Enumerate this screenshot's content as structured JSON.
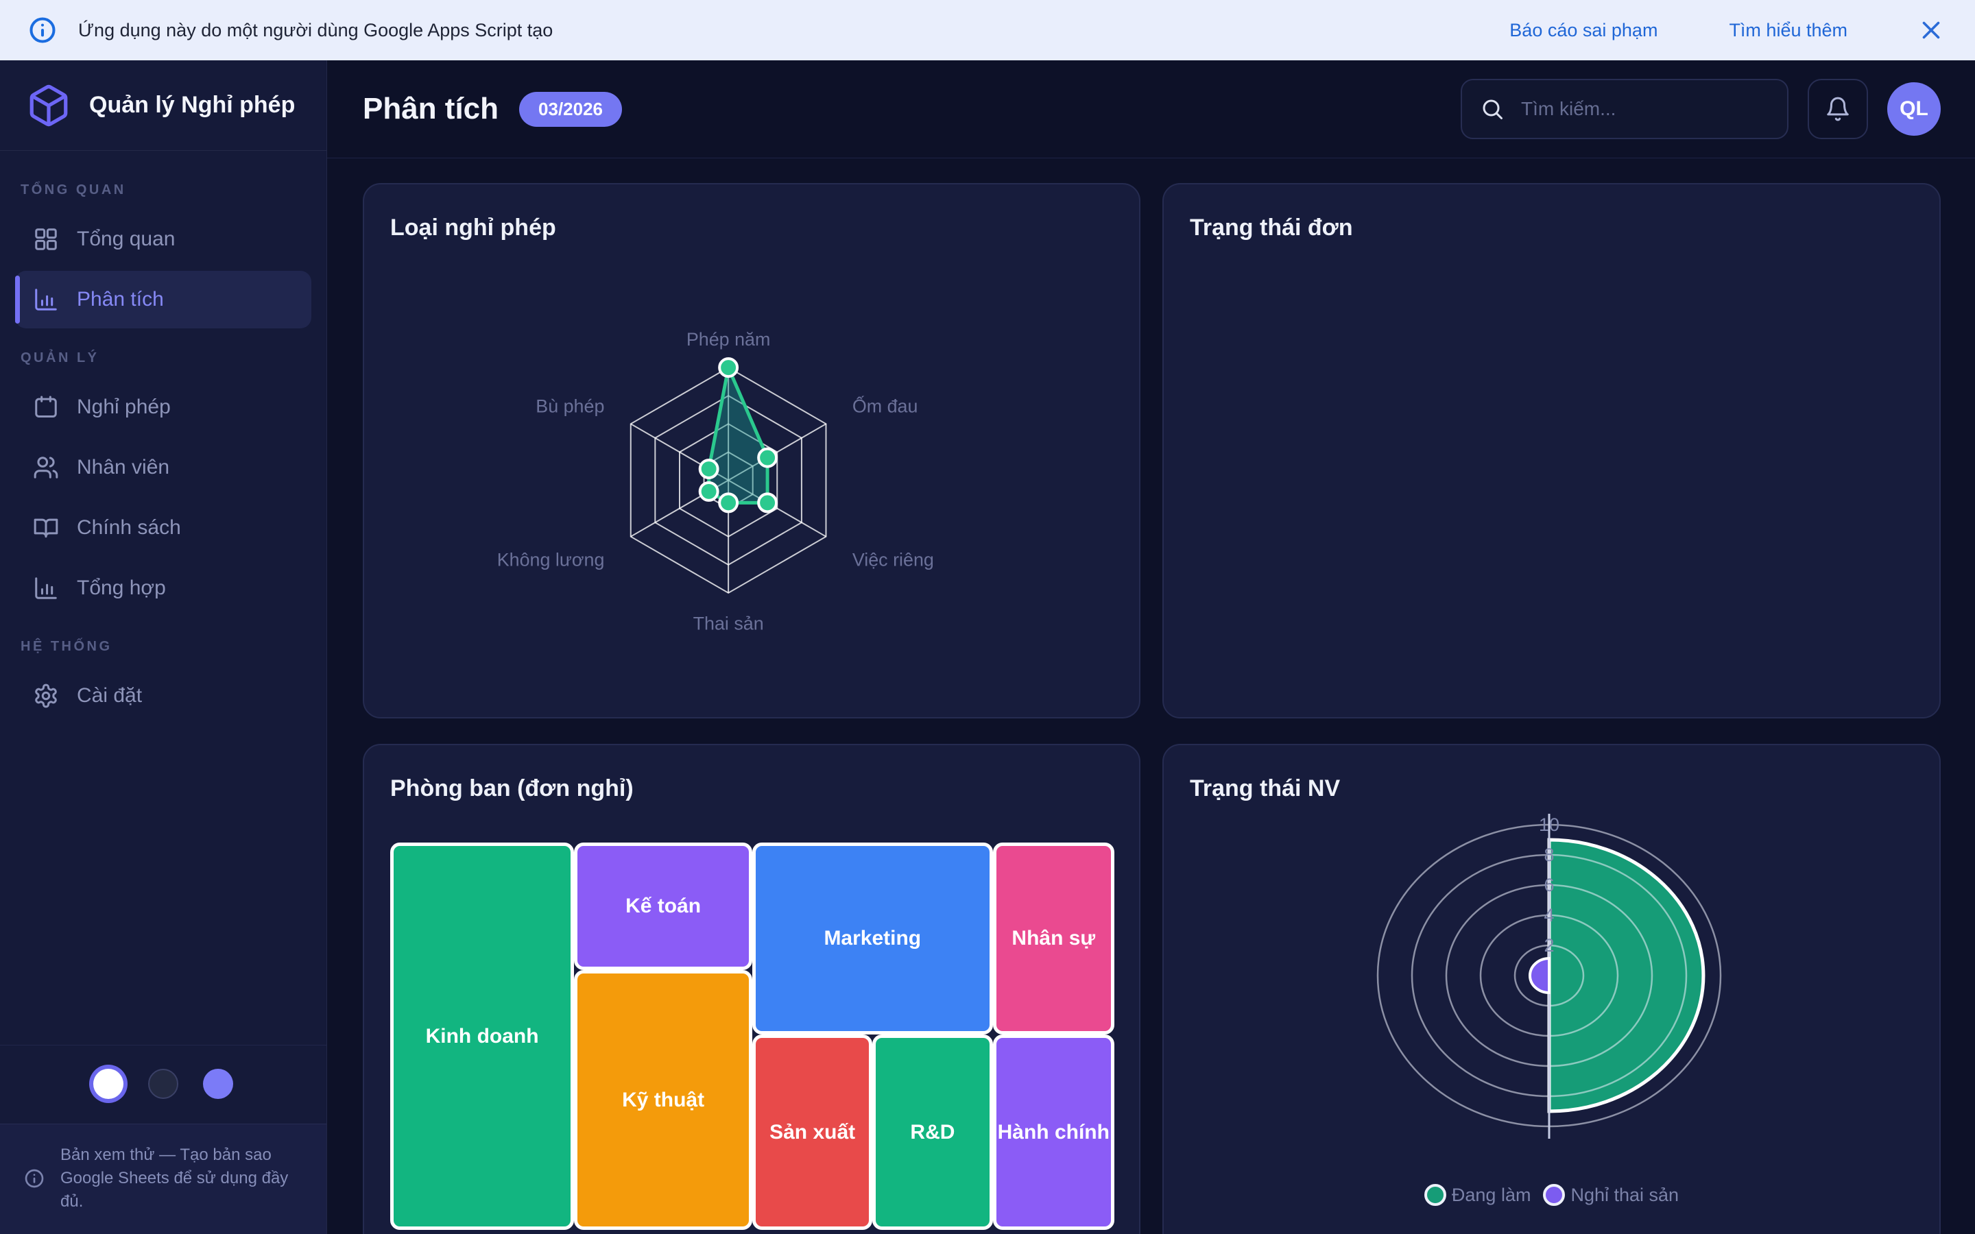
{
  "banner": {
    "message": "Ứng dụng này do một người dùng Google Apps Script tạo",
    "report_link": "Báo cáo sai phạm",
    "learn_more_link": "Tìm hiểu thêm"
  },
  "sidebar": {
    "app_title": "Quản lý Nghỉ phép",
    "sections": [
      {
        "label": "TỔNG QUAN",
        "items": [
          {
            "key": "tong-quan",
            "label": "Tổng quan",
            "icon": "dashboard-icon",
            "active": false
          },
          {
            "key": "phan-tich",
            "label": "Phân tích",
            "icon": "bar-chart-icon",
            "active": true
          }
        ]
      },
      {
        "label": "QUẢN LÝ",
        "items": [
          {
            "key": "nghi-phep",
            "label": "Nghỉ phép",
            "icon": "calendar-icon",
            "active": false
          },
          {
            "key": "nhan-vien",
            "label": "Nhân viên",
            "icon": "users-icon",
            "active": false
          },
          {
            "key": "chinh-sach",
            "label": "Chính sách",
            "icon": "book-icon",
            "active": false
          },
          {
            "key": "tong-hop",
            "label": "Tổng hợp",
            "icon": "bar-chart-icon",
            "active": false
          }
        ]
      },
      {
        "label": "HỆ THỐNG",
        "items": [
          {
            "key": "cai-dat",
            "label": "Cài đặt",
            "icon": "gear-icon",
            "active": false
          }
        ]
      }
    ],
    "theme_dots": [
      {
        "key": "light",
        "color": "#ffffff",
        "selected": true
      },
      {
        "key": "dark",
        "color": "#232941",
        "selected": false
      },
      {
        "key": "purple",
        "color": "#7b7bf7",
        "selected": false
      }
    ],
    "footer_note": "Bản xem thử — Tạo bản sao Google Sheets để sử dụng đầy đủ."
  },
  "header": {
    "title": "Phân tích",
    "period_badge": "03/2026",
    "search_placeholder": "Tìm kiếm...",
    "avatar_initials": "QL"
  },
  "cards": {
    "leave_types": {
      "title": "Loại nghỉ phép"
    },
    "request_status": {
      "title": "Trạng thái đơn"
    },
    "departments": {
      "title": "Phòng ban (đơn nghỉ)"
    },
    "employee_status": {
      "title": "Trạng thái NV"
    }
  },
  "accent_colors": {
    "brand_purple": "#7477f2",
    "banner_blue": "#1f66d6",
    "card_bg": "#171c3c",
    "sidebar_bg": "#151a39"
  },
  "chart_data": [
    {
      "id": "leave-types-radar",
      "type": "radar",
      "title": "Loại nghỉ phép",
      "axes": [
        "Phép năm",
        "Ốm đau",
        "Việc riêng",
        "Thai sản",
        "Không lương",
        "Bù phép"
      ],
      "values": [
        20,
        8,
        8,
        4,
        4,
        4
      ],
      "max": 20,
      "levels": 4,
      "line_color": "#2bc98e",
      "fill_color": "rgba(24,150,140,0.42)",
      "grid_color": "rgba(255,255,255,0.78)"
    },
    {
      "id": "departments-treemap",
      "type": "treemap",
      "title": "Phòng ban (đơn nghỉ)",
      "items": [
        {
          "key": "kinh-doanh",
          "label": "Kinh doanh",
          "value": 12,
          "color": "#12b580",
          "rect": {
            "x": 0,
            "y": 0,
            "w": 25.4,
            "h": 100
          }
        },
        {
          "key": "ke-toan",
          "label": "Kế toán",
          "value": 4,
          "color": "#8b5cf6",
          "rect": {
            "x": 25.4,
            "y": 0,
            "w": 24.6,
            "h": 33
          }
        },
        {
          "key": "ky-thuat",
          "label": "Kỹ thuật",
          "value": 8,
          "color": "#f49b0b",
          "rect": {
            "x": 25.4,
            "y": 33,
            "w": 24.6,
            "h": 67
          }
        },
        {
          "key": "marketing",
          "label": "Marketing",
          "value": 8,
          "color": "#3d82f4",
          "rect": {
            "x": 50,
            "y": 0,
            "w": 33.2,
            "h": 49.6
          }
        },
        {
          "key": "nhan-su",
          "label": "Nhân sự",
          "value": 4,
          "color": "#ea4a90",
          "rect": {
            "x": 83.2,
            "y": 0,
            "w": 16.8,
            "h": 49.6
          }
        },
        {
          "key": "san-xuat",
          "label": "Sản xuất",
          "value": 4,
          "color": "#e84a4a",
          "rect": {
            "x": 50,
            "y": 49.6,
            "w": 16.6,
            "h": 50.4
          }
        },
        {
          "key": "rnd",
          "label": "R&D",
          "value": 4,
          "color": "#12b580",
          "rect": {
            "x": 66.6,
            "y": 49.6,
            "w": 16.6,
            "h": 50.4
          }
        },
        {
          "key": "hanh-chinh",
          "label": "Hành chính",
          "value": 4,
          "color": "#8b5cf6",
          "rect": {
            "x": 83.2,
            "y": 49.6,
            "w": 16.8,
            "h": 50.4
          }
        }
      ]
    },
    {
      "id": "employee-status-polar",
      "type": "polar-area",
      "title": "Trạng thái NV",
      "axis_ticks": [
        2,
        4,
        6,
        8,
        10
      ],
      "axis_max": 10,
      "legend_position": "bottom",
      "series": [
        {
          "key": "dang-lam",
          "label": "Đang làm",
          "value": 9,
          "color": "#169c77",
          "side": "right"
        },
        {
          "key": "nghi-thai-san",
          "label": "Nghỉ thai sản",
          "value": 1,
          "color": "#7c5cf0",
          "side": "left"
        }
      ]
    }
  ]
}
